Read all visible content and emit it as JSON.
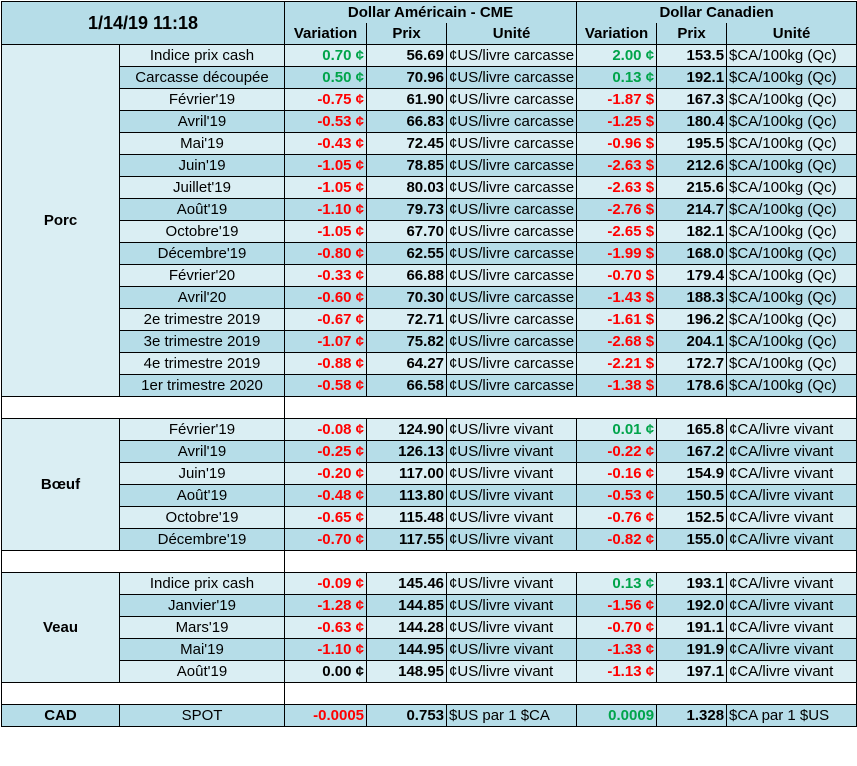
{
  "header": {
    "timestamp": "1/14/19 11:18",
    "usd_group": "Dollar Américain - CME",
    "cad_group": "Dollar Canadien",
    "col_variation": "Variation",
    "col_price": "Prix",
    "col_unit": "Unité"
  },
  "sections": [
    {
      "name": "Porc",
      "rows": [
        {
          "label": "Indice prix cash",
          "usd_var": "0.70 ¢",
          "usd_price": "56.69",
          "usd_unit": "¢US/livre carcasse",
          "cad_var": "2.00 ¢",
          "cad_price": "153.5",
          "cad_unit": "$CA/100kg (Qc)",
          "usd_sign": "pos",
          "cad_sign": "pos"
        },
        {
          "label": "Carcasse découpée",
          "usd_var": "0.50 ¢",
          "usd_price": "70.96",
          "usd_unit": "¢US/livre carcasse",
          "cad_var": "0.13 ¢",
          "cad_price": "192.1",
          "cad_unit": "$CA/100kg (Qc)",
          "usd_sign": "pos",
          "cad_sign": "pos"
        },
        {
          "label": "Février'19",
          "usd_var": "-0.75 ¢",
          "usd_price": "61.90",
          "usd_unit": "¢US/livre carcasse",
          "cad_var": "-1.87 $",
          "cad_price": "167.3",
          "cad_unit": "$CA/100kg (Qc)",
          "usd_sign": "neg",
          "cad_sign": "neg"
        },
        {
          "label": "Avril'19",
          "usd_var": "-0.53 ¢",
          "usd_price": "66.83",
          "usd_unit": "¢US/livre carcasse",
          "cad_var": "-1.25 $",
          "cad_price": "180.4",
          "cad_unit": "$CA/100kg (Qc)",
          "usd_sign": "neg",
          "cad_sign": "neg"
        },
        {
          "label": "Mai'19",
          "usd_var": "-0.43 ¢",
          "usd_price": "72.45",
          "usd_unit": "¢US/livre carcasse",
          "cad_var": "-0.96 $",
          "cad_price": "195.5",
          "cad_unit": "$CA/100kg (Qc)",
          "usd_sign": "neg",
          "cad_sign": "neg"
        },
        {
          "label": "Juin'19",
          "usd_var": "-1.05 ¢",
          "usd_price": "78.85",
          "usd_unit": "¢US/livre carcasse",
          "cad_var": "-2.63 $",
          "cad_price": "212.6",
          "cad_unit": "$CA/100kg (Qc)",
          "usd_sign": "neg",
          "cad_sign": "neg"
        },
        {
          "label": "Juillet'19",
          "usd_var": "-1.05 ¢",
          "usd_price": "80.03",
          "usd_unit": "¢US/livre carcasse",
          "cad_var": "-2.63 $",
          "cad_price": "215.6",
          "cad_unit": "$CA/100kg (Qc)",
          "usd_sign": "neg",
          "cad_sign": "neg"
        },
        {
          "label": "Août'19",
          "usd_var": "-1.10 ¢",
          "usd_price": "79.73",
          "usd_unit": "¢US/livre carcasse",
          "cad_var": "-2.76 $",
          "cad_price": "214.7",
          "cad_unit": "$CA/100kg (Qc)",
          "usd_sign": "neg",
          "cad_sign": "neg"
        },
        {
          "label": "Octobre'19",
          "usd_var": "-1.05 ¢",
          "usd_price": "67.70",
          "usd_unit": "¢US/livre carcasse",
          "cad_var": "-2.65 $",
          "cad_price": "182.1",
          "cad_unit": "$CA/100kg (Qc)",
          "usd_sign": "neg",
          "cad_sign": "neg"
        },
        {
          "label": "Décembre'19",
          "usd_var": "-0.80 ¢",
          "usd_price": "62.55",
          "usd_unit": "¢US/livre carcasse",
          "cad_var": "-1.99 $",
          "cad_price": "168.0",
          "cad_unit": "$CA/100kg (Qc)",
          "usd_sign": "neg",
          "cad_sign": "neg"
        },
        {
          "label": "Février'20",
          "usd_var": "-0.33 ¢",
          "usd_price": "66.88",
          "usd_unit": "¢US/livre carcasse",
          "cad_var": "-0.70 $",
          "cad_price": "179.4",
          "cad_unit": "$CA/100kg (Qc)",
          "usd_sign": "neg",
          "cad_sign": "neg"
        },
        {
          "label": "Avril'20",
          "usd_var": "-0.60 ¢",
          "usd_price": "70.30",
          "usd_unit": "¢US/livre carcasse",
          "cad_var": "-1.43 $",
          "cad_price": "188.3",
          "cad_unit": "$CA/100kg (Qc)",
          "usd_sign": "neg",
          "cad_sign": "neg"
        },
        {
          "label": "2e trimestre 2019",
          "usd_var": "-0.67 ¢",
          "usd_price": "72.71",
          "usd_unit": "¢US/livre carcasse",
          "cad_var": "-1.61 $",
          "cad_price": "196.2",
          "cad_unit": "$CA/100kg (Qc)",
          "usd_sign": "neg",
          "cad_sign": "neg"
        },
        {
          "label": "3e trimestre 2019",
          "usd_var": "-1.07 ¢",
          "usd_price": "75.82",
          "usd_unit": "¢US/livre carcasse",
          "cad_var": "-2.68 $",
          "cad_price": "204.1",
          "cad_unit": "$CA/100kg (Qc)",
          "usd_sign": "neg",
          "cad_sign": "neg"
        },
        {
          "label": "4e trimestre 2019",
          "usd_var": "-0.88 ¢",
          "usd_price": "64.27",
          "usd_unit": "¢US/livre carcasse",
          "cad_var": "-2.21 $",
          "cad_price": "172.7",
          "cad_unit": "$CA/100kg (Qc)",
          "usd_sign": "neg",
          "cad_sign": "neg"
        },
        {
          "label": "1er trimestre 2020",
          "usd_var": "-0.58 ¢",
          "usd_price": "66.58",
          "usd_unit": "¢US/livre carcasse",
          "cad_var": "-1.38 $",
          "cad_price": "178.6",
          "cad_unit": "$CA/100kg (Qc)",
          "usd_sign": "neg",
          "cad_sign": "neg"
        }
      ]
    },
    {
      "name": "Bœuf",
      "rows": [
        {
          "label": "Février'19",
          "usd_var": "-0.08 ¢",
          "usd_price": "124.90",
          "usd_unit": "¢US/livre vivant",
          "cad_var": "0.01 ¢",
          "cad_price": "165.8",
          "cad_unit": "¢CA/livre vivant",
          "usd_sign": "neg",
          "cad_sign": "pos"
        },
        {
          "label": "Avril'19",
          "usd_var": "-0.25 ¢",
          "usd_price": "126.13",
          "usd_unit": "¢US/livre vivant",
          "cad_var": "-0.22 ¢",
          "cad_price": "167.2",
          "cad_unit": "¢CA/livre vivant",
          "usd_sign": "neg",
          "cad_sign": "neg"
        },
        {
          "label": "Juin'19",
          "usd_var": "-0.20 ¢",
          "usd_price": "117.00",
          "usd_unit": "¢US/livre vivant",
          "cad_var": "-0.16 ¢",
          "cad_price": "154.9",
          "cad_unit": "¢CA/livre vivant",
          "usd_sign": "neg",
          "cad_sign": "neg"
        },
        {
          "label": "Août'19",
          "usd_var": "-0.48 ¢",
          "usd_price": "113.80",
          "usd_unit": "¢US/livre vivant",
          "cad_var": "-0.53 ¢",
          "cad_price": "150.5",
          "cad_unit": "¢CA/livre vivant",
          "usd_sign": "neg",
          "cad_sign": "neg"
        },
        {
          "label": "Octobre'19",
          "usd_var": "-0.65 ¢",
          "usd_price": "115.48",
          "usd_unit": "¢US/livre vivant",
          "cad_var": "-0.76 ¢",
          "cad_price": "152.5",
          "cad_unit": "¢CA/livre vivant",
          "usd_sign": "neg",
          "cad_sign": "neg"
        },
        {
          "label": "Décembre'19",
          "usd_var": "-0.70 ¢",
          "usd_price": "117.55",
          "usd_unit": "¢US/livre vivant",
          "cad_var": "-0.82 ¢",
          "cad_price": "155.0",
          "cad_unit": "¢CA/livre vivant",
          "usd_sign": "neg",
          "cad_sign": "neg"
        }
      ]
    },
    {
      "name": "Veau",
      "rows": [
        {
          "label": "Indice prix cash",
          "usd_var": "-0.09 ¢",
          "usd_price": "145.46",
          "usd_unit": "¢US/livre vivant",
          "cad_var": "0.13 ¢",
          "cad_price": "193.1",
          "cad_unit": "¢CA/livre vivant",
          "usd_sign": "neg",
          "cad_sign": "pos"
        },
        {
          "label": "Janvier'19",
          "usd_var": "-1.28 ¢",
          "usd_price": "144.85",
          "usd_unit": "¢US/livre vivant",
          "cad_var": "-1.56 ¢",
          "cad_price": "192.0",
          "cad_unit": "¢CA/livre vivant",
          "usd_sign": "neg",
          "cad_sign": "neg"
        },
        {
          "label": "Mars'19",
          "usd_var": "-0.63 ¢",
          "usd_price": "144.28",
          "usd_unit": "¢US/livre vivant",
          "cad_var": "-0.70 ¢",
          "cad_price": "191.1",
          "cad_unit": "¢CA/livre vivant",
          "usd_sign": "neg",
          "cad_sign": "neg"
        },
        {
          "label": "Mai'19",
          "usd_var": "-1.10 ¢",
          "usd_price": "144.95",
          "usd_unit": "¢US/livre vivant",
          "cad_var": "-1.33 ¢",
          "cad_price": "191.9",
          "cad_unit": "¢CA/livre vivant",
          "usd_sign": "neg",
          "cad_sign": "neg"
        },
        {
          "label": "Août'19",
          "usd_var": "0.00 ¢",
          "usd_price": "148.95",
          "usd_unit": "¢US/livre vivant",
          "cad_var": "-1.13 ¢",
          "cad_price": "197.1",
          "cad_unit": "¢CA/livre vivant",
          "usd_sign": "zero",
          "cad_sign": "neg"
        }
      ]
    }
  ],
  "cad_row": {
    "name": "CAD",
    "label": "SPOT",
    "usd_var": "-0.0005",
    "usd_price": "0.753",
    "usd_unit": "$US par 1 $CA",
    "cad_var": "0.0009",
    "cad_price": "1.328",
    "cad_unit": "$CA par 1 $US",
    "usd_sign": "neg",
    "cad_sign": "pos"
  },
  "colors": {
    "positive": "#00a44a",
    "negative": "#ff0000",
    "header_bg": "#b6dde8",
    "row_light": "#daeef3"
  }
}
